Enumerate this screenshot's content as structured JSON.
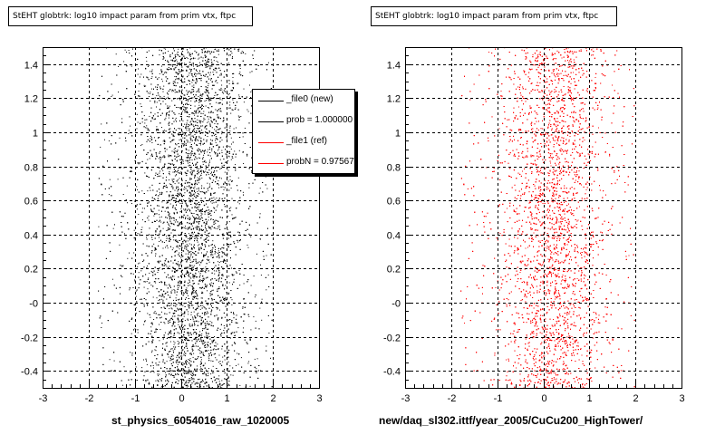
{
  "colors": {
    "file0": "#000000",
    "file1": "#ff0000"
  },
  "legend": {
    "entries": [
      {
        "label": "_file0 (new)",
        "color": "#000000"
      },
      {
        "label": "prob = 1.000000",
        "color": "#000000"
      },
      {
        "label": "_file1 (ref)",
        "color": "#ff0000"
      },
      {
        "label": "probN = 0.975676",
        "color": "#ff0000"
      }
    ]
  },
  "chart_data": [
    {
      "type": "scatter",
      "title": "StEHT globtrk: log10 impact param from prim vtx, ftpc",
      "xlabel": "st_physics_6054016_raw_1020005",
      "ylabel": "",
      "xlim": [
        -3,
        3
      ],
      "ylim": [
        -0.5,
        1.5
      ],
      "xticks": [
        "-3",
        "-2",
        "-1",
        "0",
        "1",
        "2",
        "3"
      ],
      "yticks": [
        "-0.4",
        "-0.2",
        "-0",
        "0.2",
        "0.4",
        "0.6",
        "0.8",
        "1",
        "1.2",
        "1.4"
      ],
      "grid": true,
      "color": "#000000",
      "x_center": 0.2,
      "x_core_range": [
        -1.0,
        1.5
      ],
      "x_full_range": [
        -1.8,
        2.0
      ]
    },
    {
      "type": "scatter",
      "title": "StEHT globtrk: log10 impact param from prim vtx, ftpc",
      "xlabel": "new/daq_sl302.ittf/year_2005/CuCu200_HighTower/",
      "ylabel": "",
      "xlim": [
        -3,
        3
      ],
      "ylim": [
        -0.5,
        1.5
      ],
      "xticks": [
        "-3",
        "-2",
        "-1",
        "0",
        "1",
        "2",
        "3"
      ],
      "yticks": [
        "-0.4",
        "-0.2",
        "-0",
        "0.2",
        "0.4",
        "0.6",
        "0.8",
        "1",
        "1.2",
        "1.4"
      ],
      "grid": true,
      "color": "#ff0000",
      "x_center": 0.2,
      "x_core_range": [
        -1.0,
        1.5
      ],
      "x_full_range": [
        -1.8,
        2.0
      ]
    }
  ]
}
